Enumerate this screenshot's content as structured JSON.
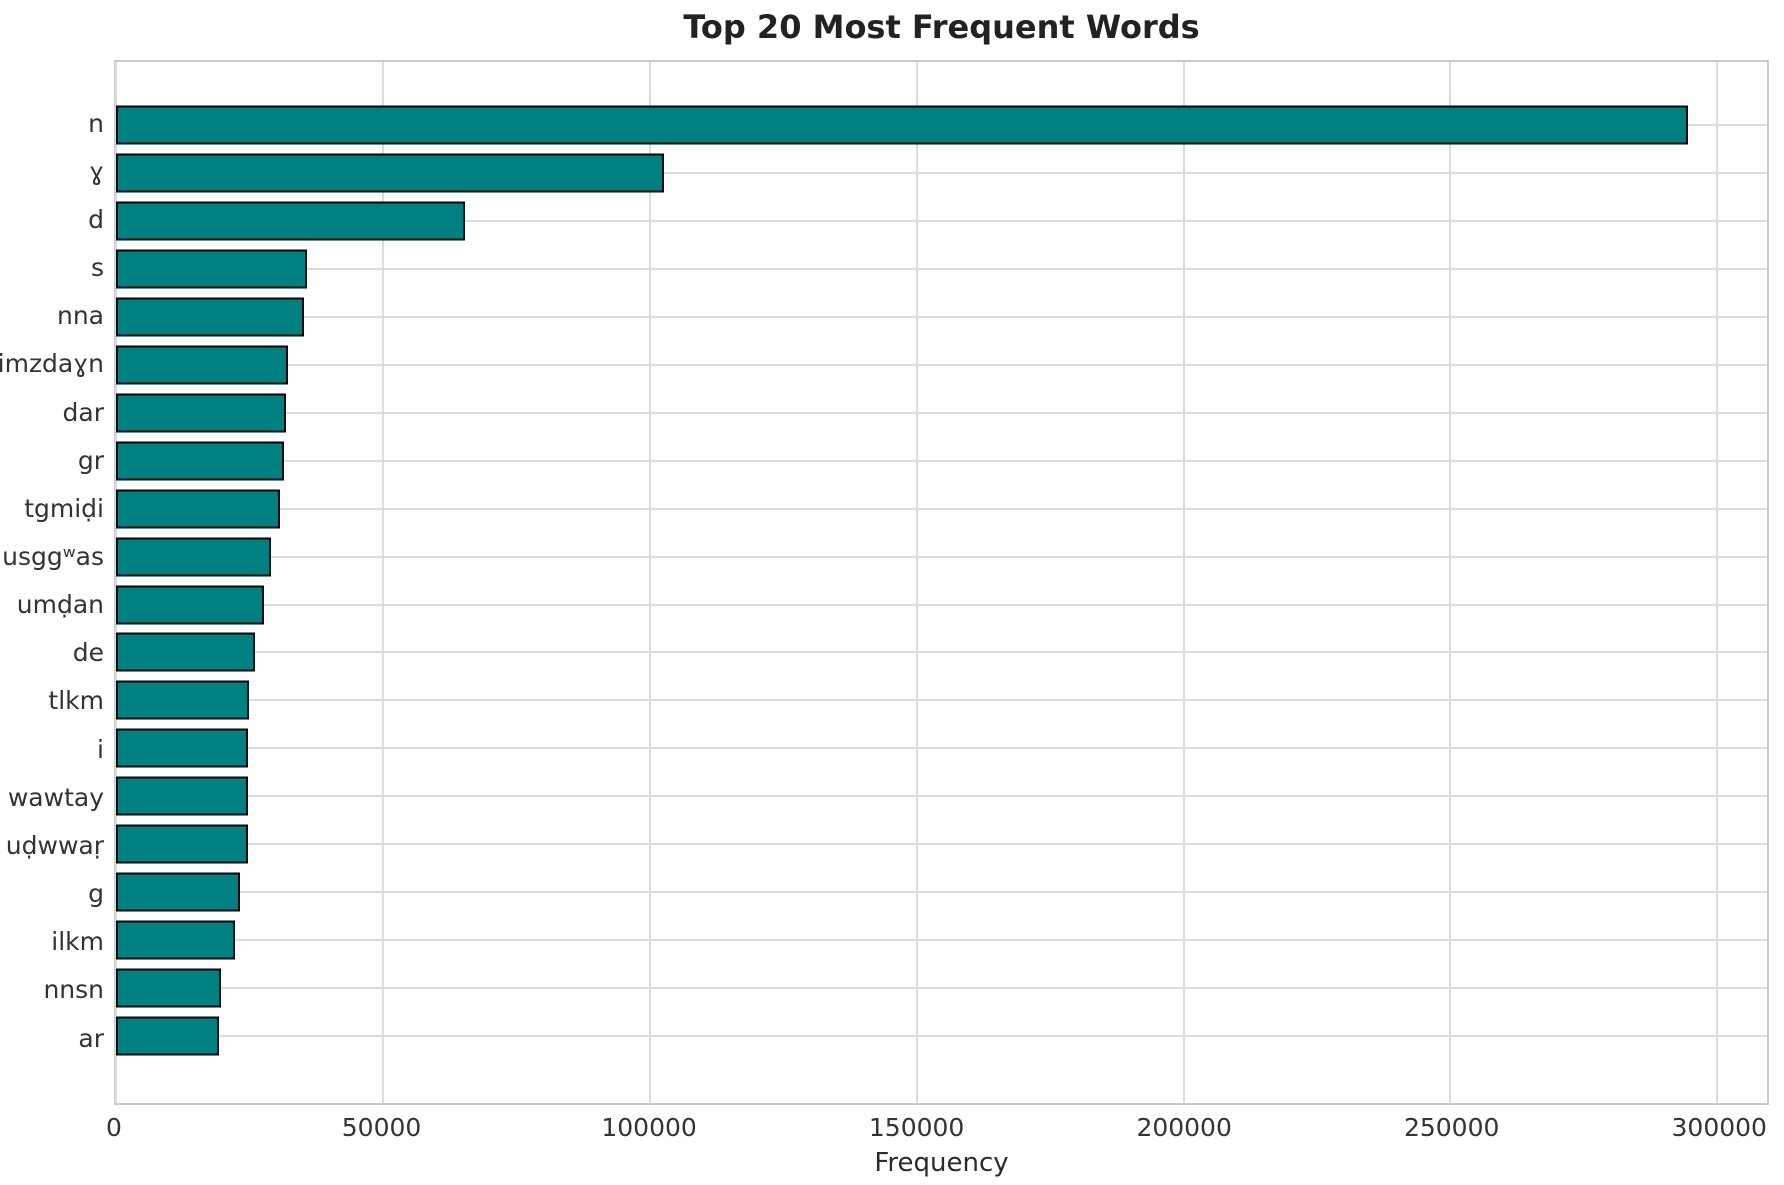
{
  "chart_data": {
    "type": "bar",
    "orientation": "horizontal",
    "title": "Top 20 Most Frequent Words",
    "xlabel": "Frequency",
    "ylabel": "",
    "categories": [
      "n",
      "ɣ",
      "d",
      "s",
      "nna",
      "imzdaɣn",
      "dar",
      "gr",
      "tgmiḍi",
      "usggʷas",
      "umḍan",
      "de",
      "tlkm",
      "i",
      "wawtay",
      "uḍwwaṛ",
      "g",
      "ilkm",
      "nnsn",
      "ar"
    ],
    "values": [
      294500,
      102600,
      65300,
      35700,
      35150,
      32300,
      31800,
      31500,
      30750,
      29000,
      27750,
      26100,
      25000,
      24800,
      24750,
      24700,
      23150,
      22200,
      19700,
      19300
    ],
    "x_ticks": [
      0,
      50000,
      100000,
      150000,
      200000,
      250000,
      300000
    ],
    "xlim": [
      0,
      309300
    ],
    "grid": true,
    "legend": "none",
    "bar_color": "#008080",
    "bar_edge_color": "#0a0a0a",
    "grid_color": "#dcdcdc",
    "background_color": "#ffffff"
  }
}
